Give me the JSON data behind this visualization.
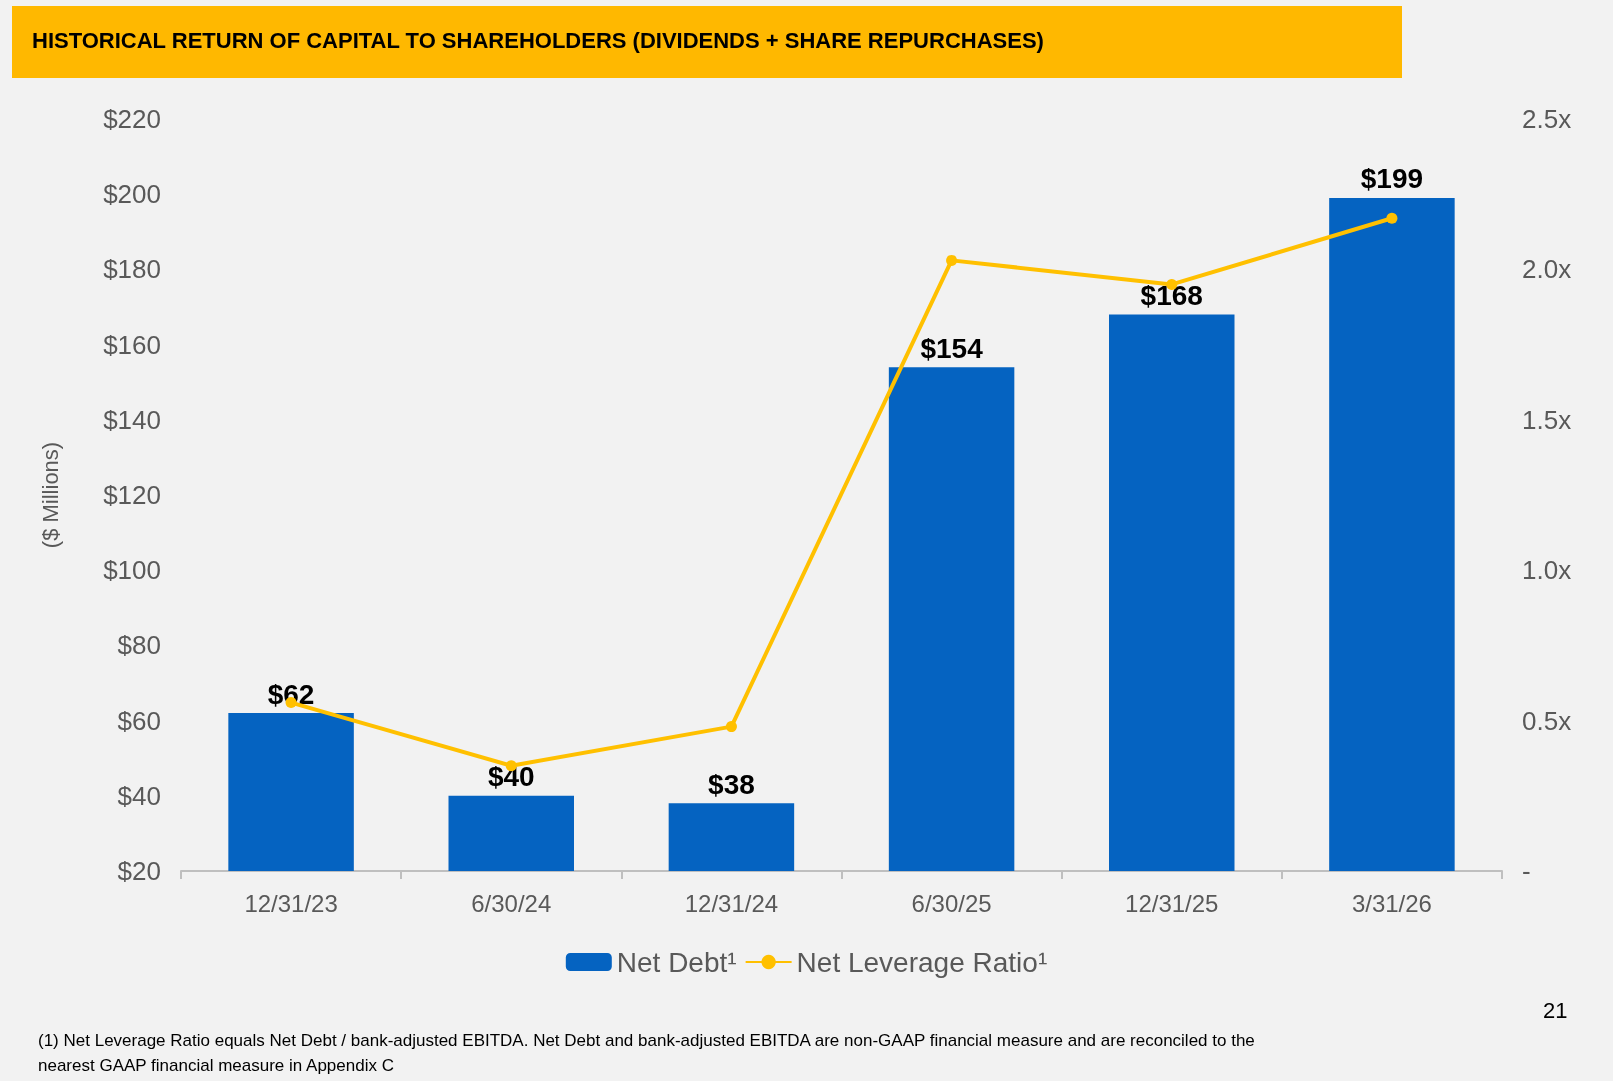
{
  "chart_data": {
    "type": "bar",
    "title": "HISTORICAL RETURN OF CAPITAL TO SHAREHOLDERS (DIVIDENDS + SHARE REPURCHASES)",
    "ylabel": "($ Millions)",
    "categories": [
      "12/31/23",
      "6/30/24",
      "12/31/24",
      "6/30/25",
      "12/31/25",
      "3/31/26"
    ],
    "series": [
      {
        "name": "Net Debt¹",
        "color": "#0563c1",
        "values": [
          62,
          40,
          38,
          154,
          168,
          199
        ],
        "value_labels": [
          "$62",
          "$40",
          "$38",
          "$154",
          "$168",
          "$199"
        ]
      },
      {
        "name": "Net Leverage Ratio¹",
        "type": "line",
        "axis": "y2",
        "color": "#ffc000",
        "values": [
          0.56,
          0.35,
          0.48,
          2.03,
          1.95,
          2.17
        ]
      }
    ],
    "ylim": [
      20,
      220
    ],
    "yticks": [
      {
        "value": 20,
        "label": "$20"
      },
      {
        "value": 40,
        "label": "$40"
      },
      {
        "value": 60,
        "label": "$60"
      },
      {
        "value": 80,
        "label": "$80"
      },
      {
        "value": 100,
        "label": "$100"
      },
      {
        "value": 120,
        "label": "$120"
      },
      {
        "value": 140,
        "label": "$140"
      },
      {
        "value": 160,
        "label": "$160"
      },
      {
        "value": 180,
        "label": "$180"
      },
      {
        "value": 200,
        "label": "$200"
      },
      {
        "value": 220,
        "label": "$220"
      }
    ],
    "y2lim": [
      0,
      2.5
    ],
    "y2ticks": [
      {
        "value": 0,
        "label": "-"
      },
      {
        "value": 0.5,
        "label": "0.5x"
      },
      {
        "value": 1,
        "label": "1.0x"
      },
      {
        "value": 1.5,
        "label": "1.5x"
      },
      {
        "value": 2,
        "label": "2.0x"
      },
      {
        "value": 2.5,
        "label": "2.5x"
      }
    ],
    "legend": "bottom",
    "grid": false,
    "marker": "circle",
    "line_style": "solid",
    "annotations": [
      "(1) Net Leverage Ratio equals Net Debt / bank-adjusted EBITDA. Net Debt and bank-adjusted EBITDA are non-GAAP financial measure and are reconciled to the nearest GAAP financial measure in Appendix C",
      "21"
    ]
  }
}
